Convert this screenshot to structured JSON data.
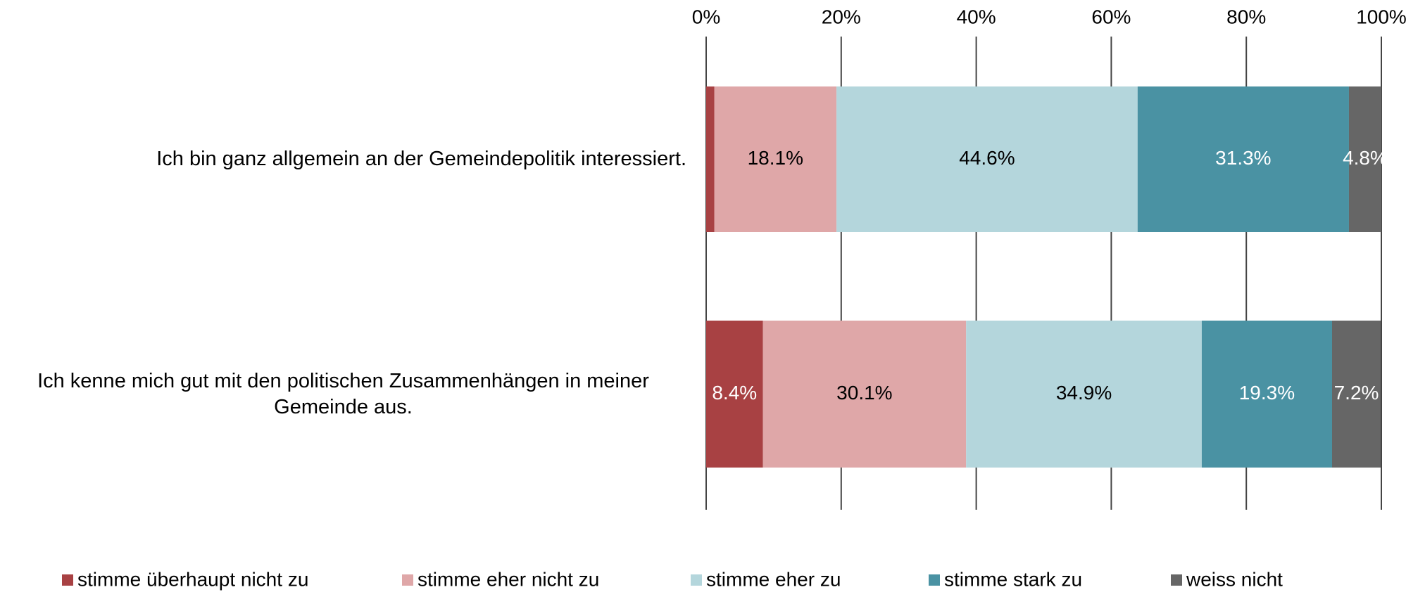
{
  "chart_data": {
    "type": "stacked-barh",
    "categories": [
      "Ich bin ganz allgemein an der Gemeindepolitik interessiert.",
      "Ich kenne mich gut mit den politischen Zusammenhängen in meiner Gemeinde aus."
    ],
    "series": [
      {
        "name": "stimme überhaupt nicht zu",
        "color": "#a84143",
        "values": [
          1.2,
          8.4
        ],
        "value_labels": [
          null,
          "8.4%"
        ]
      },
      {
        "name": "stimme eher nicht zu",
        "color": "#dfa7a8",
        "values": [
          18.1,
          30.1
        ],
        "value_labels": [
          "18.1%",
          "30.1%"
        ]
      },
      {
        "name": "stimme eher zu",
        "color": "#b4d6dc",
        "values": [
          44.6,
          34.9
        ],
        "value_labels": [
          "44.6%",
          "34.9%"
        ]
      },
      {
        "name": "stimme stark zu",
        "color": "#4a92a3",
        "values": [
          31.3,
          19.3
        ],
        "value_labels": [
          "31.3%",
          "19.3%"
        ]
      },
      {
        "name": "weiss nicht",
        "color": "#666666",
        "values": [
          4.8,
          7.2
        ],
        "value_labels": [
          "4.8%",
          "7.2%"
        ]
      }
    ],
    "xlim": [
      0,
      100
    ],
    "xticks": [
      {
        "value": 0,
        "label": "0%"
      },
      {
        "value": 20,
        "label": "20%"
      },
      {
        "value": 40,
        "label": "40%"
      },
      {
        "value": 60,
        "label": "60%"
      },
      {
        "value": 80,
        "label": "80%"
      },
      {
        "value": 100,
        "label": "100%"
      }
    ],
    "grid": true,
    "legend": "bottom"
  }
}
